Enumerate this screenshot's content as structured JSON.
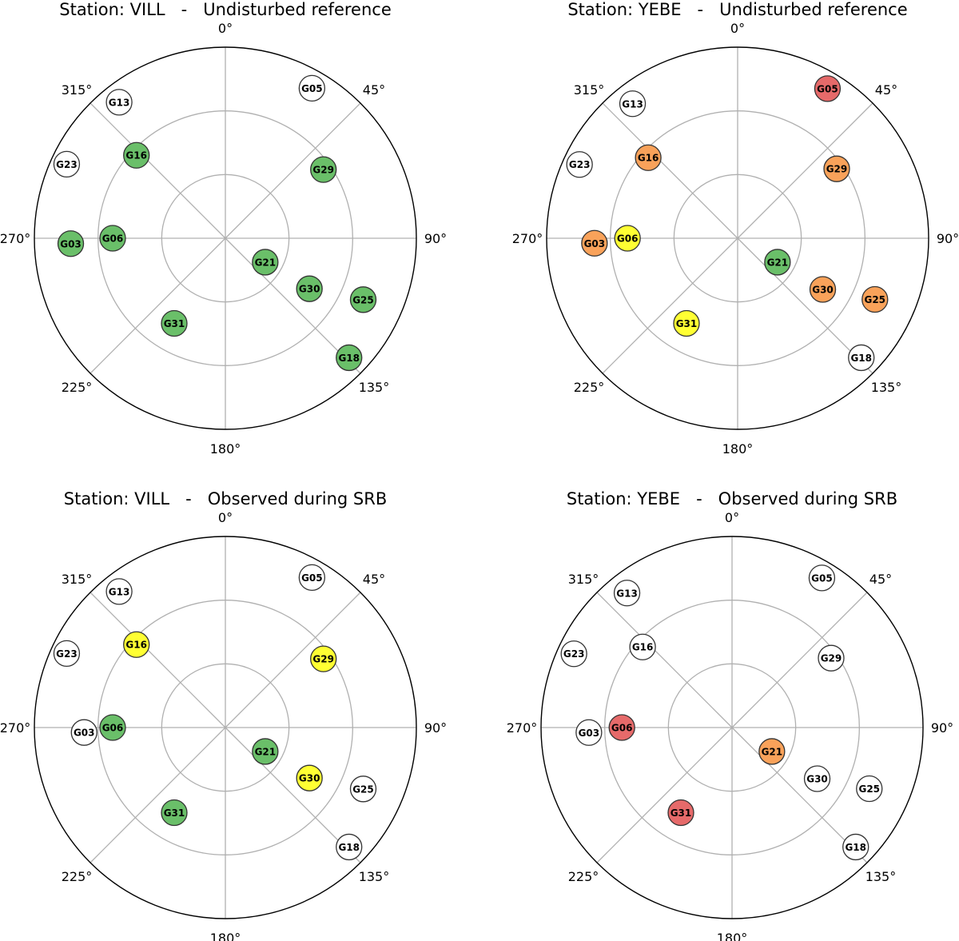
{
  "palette": {
    "green": "#6abf69",
    "yellow": "#ffff33",
    "orange": "#f9a25a",
    "red": "#e66a6a",
    "white": "#ffffff",
    "grid": "#b0b0b0",
    "frame": "#000000",
    "marker_edge": "#333333"
  },
  "chart_data": [
    {
      "type": "scatter",
      "subtype": "polar",
      "title": "Station: VILL   -   Undisturbed reference",
      "theta_ticks": [
        "0°",
        "45°",
        "90°",
        "135°",
        "180°",
        "225°",
        "270°",
        "315°"
      ],
      "r_max": 3,
      "grid": true,
      "satellites": [
        {
          "name": "G05",
          "azimuth": 30,
          "radius": 2.72,
          "color": "white"
        },
        {
          "name": "G13",
          "azimuth": 322,
          "radius": 2.71,
          "color": "white"
        },
        {
          "name": "G23",
          "azimuth": 295,
          "radius": 2.75,
          "color": "white"
        },
        {
          "name": "G16",
          "azimuth": 313,
          "radius": 1.91,
          "color": "green"
        },
        {
          "name": "G29",
          "azimuth": 55,
          "radius": 1.88,
          "color": "green"
        },
        {
          "name": "G03",
          "azimuth": 268,
          "radius": 2.43,
          "color": "green"
        },
        {
          "name": "G06",
          "azimuth": 270,
          "radius": 1.77,
          "color": "green"
        },
        {
          "name": "G21",
          "azimuth": 121,
          "radius": 0.73,
          "color": "green"
        },
        {
          "name": "G30",
          "azimuth": 121,
          "radius": 1.54,
          "color": "green"
        },
        {
          "name": "G25",
          "azimuth": 114,
          "radius": 2.37,
          "color": "green"
        },
        {
          "name": "G18",
          "azimuth": 134,
          "radius": 2.7,
          "color": "green"
        },
        {
          "name": "G31",
          "azimuth": 211,
          "radius": 1.56,
          "color": "green"
        }
      ]
    },
    {
      "type": "scatter",
      "subtype": "polar",
      "title": "Station: YEBE   -   Undisturbed reference",
      "theta_ticks": [
        "0°",
        "45°",
        "90°",
        "135°",
        "180°",
        "225°",
        "270°",
        "315°"
      ],
      "r_max": 3,
      "grid": true,
      "satellites": [
        {
          "name": "G05",
          "azimuth": 31,
          "radius": 2.74,
          "color": "red"
        },
        {
          "name": "G13",
          "azimuth": 322,
          "radius": 2.68,
          "color": "white"
        },
        {
          "name": "G23",
          "azimuth": 295,
          "radius": 2.74,
          "color": "white"
        },
        {
          "name": "G16",
          "azimuth": 312,
          "radius": 1.89,
          "color": "orange"
        },
        {
          "name": "G29",
          "azimuth": 55,
          "radius": 1.9,
          "color": "orange"
        },
        {
          "name": "G03",
          "azimuth": 268,
          "radius": 2.25,
          "color": "orange"
        },
        {
          "name": "G06",
          "azimuth": 270,
          "radius": 1.73,
          "color": "yellow"
        },
        {
          "name": "G21",
          "azimuth": 121,
          "radius": 0.73,
          "color": "green"
        },
        {
          "name": "G30",
          "azimuth": 121,
          "radius": 1.56,
          "color": "orange"
        },
        {
          "name": "G25",
          "azimuth": 114,
          "radius": 2.36,
          "color": "orange"
        },
        {
          "name": "G18",
          "azimuth": 134,
          "radius": 2.7,
          "color": "white"
        },
        {
          "name": "G31",
          "azimuth": 211,
          "radius": 1.56,
          "color": "yellow"
        }
      ]
    },
    {
      "type": "scatter",
      "subtype": "polar",
      "title": "Station: VILL   -   Observed during SRB",
      "theta_ticks": [
        "0°",
        "45°",
        "90°",
        "135°",
        "180°",
        "225°",
        "270°",
        "315°"
      ],
      "r_max": 3,
      "grid": true,
      "satellites": [
        {
          "name": "G05",
          "azimuth": 30,
          "radius": 2.72,
          "color": "white"
        },
        {
          "name": "G13",
          "azimuth": 322,
          "radius": 2.71,
          "color": "white"
        },
        {
          "name": "G23",
          "azimuth": 295,
          "radius": 2.75,
          "color": "white"
        },
        {
          "name": "G16",
          "azimuth": 313,
          "radius": 1.91,
          "color": "yellow"
        },
        {
          "name": "G29",
          "azimuth": 55,
          "radius": 1.88,
          "color": "yellow"
        },
        {
          "name": "G03",
          "azimuth": 268,
          "radius": 2.22,
          "color": "white"
        },
        {
          "name": "G06",
          "azimuth": 270,
          "radius": 1.77,
          "color": "green"
        },
        {
          "name": "G21",
          "azimuth": 121,
          "radius": 0.73,
          "color": "green"
        },
        {
          "name": "G30",
          "azimuth": 121,
          "radius": 1.54,
          "color": "yellow"
        },
        {
          "name": "G25",
          "azimuth": 114,
          "radius": 2.37,
          "color": "white"
        },
        {
          "name": "G18",
          "azimuth": 134,
          "radius": 2.7,
          "color": "white"
        },
        {
          "name": "G31",
          "azimuth": 211,
          "radius": 1.56,
          "color": "green"
        }
      ]
    },
    {
      "type": "scatter",
      "subtype": "polar",
      "title": "Station: YEBE   -   Observed during SRB",
      "theta_ticks": [
        "0°",
        "45°",
        "90°",
        "135°",
        "180°",
        "225°",
        "270°",
        "315°"
      ],
      "r_max": 3,
      "grid": true,
      "satellites": [
        {
          "name": "G05",
          "azimuth": 31,
          "radius": 2.74,
          "color": "white"
        },
        {
          "name": "G13",
          "azimuth": 322,
          "radius": 2.68,
          "color": "white"
        },
        {
          "name": "G23",
          "azimuth": 295,
          "radius": 2.74,
          "color": "white"
        },
        {
          "name": "G16",
          "azimuth": 312,
          "radius": 1.89,
          "color": "white"
        },
        {
          "name": "G29",
          "azimuth": 55,
          "radius": 1.9,
          "color": "white"
        },
        {
          "name": "G03",
          "azimuth": 268,
          "radius": 2.25,
          "color": "white"
        },
        {
          "name": "G06",
          "azimuth": 270,
          "radius": 1.73,
          "color": "red"
        },
        {
          "name": "G21",
          "azimuth": 121,
          "radius": 0.73,
          "color": "orange"
        },
        {
          "name": "G30",
          "azimuth": 121,
          "radius": 1.56,
          "color": "white"
        },
        {
          "name": "G25",
          "azimuth": 114,
          "radius": 2.36,
          "color": "white"
        },
        {
          "name": "G18",
          "azimuth": 134,
          "radius": 2.7,
          "color": "white"
        },
        {
          "name": "G31",
          "azimuth": 211,
          "radius": 1.56,
          "color": "red"
        }
      ]
    }
  ]
}
